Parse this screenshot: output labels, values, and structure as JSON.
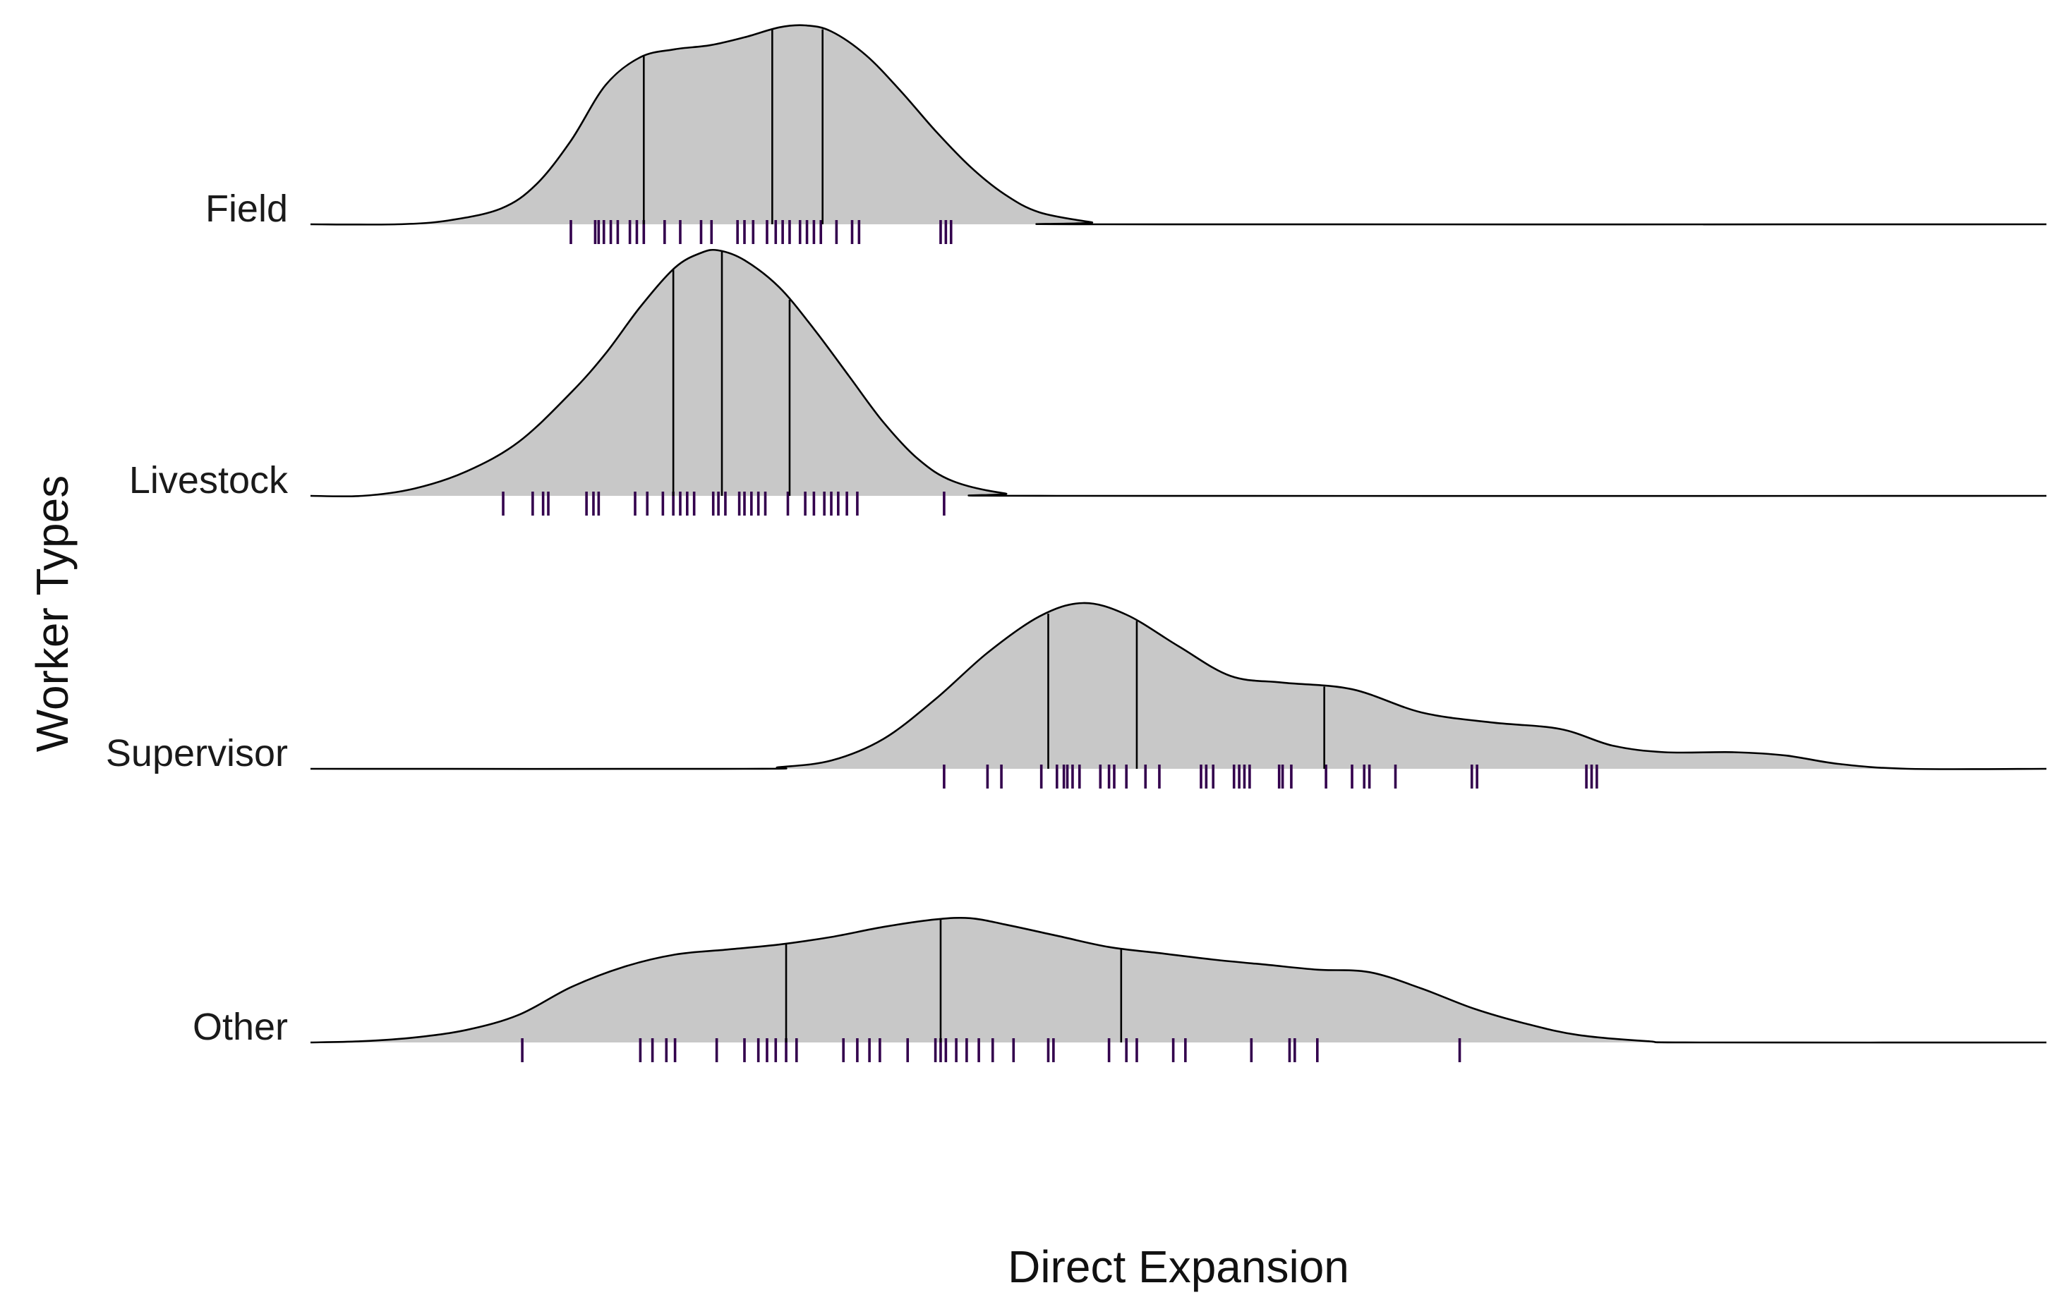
{
  "chart_data": {
    "type": "ridgeline",
    "xlabel": "Direct Expansion",
    "ylabel": "Worker Types",
    "xlim": [
      0,
      100
    ],
    "grid": false,
    "legend": "none",
    "colors": {
      "fill": "#c8c8c8",
      "line": "#000000",
      "rug": "#33004d"
    },
    "series": [
      {
        "name": "Field",
        "density": [
          [
            0,
            0
          ],
          [
            5,
            0
          ],
          [
            8,
            0.02
          ],
          [
            11,
            0.08
          ],
          [
            13,
            0.2
          ],
          [
            15,
            0.42
          ],
          [
            17,
            0.7
          ],
          [
            19,
            0.84
          ],
          [
            21,
            0.88
          ],
          [
            23,
            0.9
          ],
          [
            25,
            0.94
          ],
          [
            27,
            0.99
          ],
          [
            28.5,
            1.0
          ],
          [
            30,
            0.97
          ],
          [
            32,
            0.85
          ],
          [
            34,
            0.67
          ],
          [
            36,
            0.47
          ],
          [
            38,
            0.29
          ],
          [
            40,
            0.15
          ],
          [
            42,
            0.06
          ],
          [
            45,
            0.01
          ],
          [
            46,
            0
          ],
          [
            100,
            0
          ]
        ],
        "quantiles": [
          19.2,
          26.6,
          29.5
        ],
        "rug": [
          15,
          16.4,
          16.6,
          16.9,
          17.3,
          17.7,
          18.4,
          18.8,
          19.2,
          20.4,
          21.3,
          22.5,
          23.1,
          24.6,
          25.0,
          25.5,
          26.3,
          26.8,
          27.2,
          27.6,
          28.2,
          28.6,
          29.0,
          29.4,
          30.3,
          31.2,
          31.6,
          36.3,
          36.6,
          36.9
        ]
      },
      {
        "name": "Livestock",
        "density": [
          [
            0,
            0
          ],
          [
            3,
            0
          ],
          [
            6,
            0.03
          ],
          [
            9,
            0.1
          ],
          [
            12,
            0.22
          ],
          [
            15,
            0.42
          ],
          [
            17,
            0.58
          ],
          [
            19,
            0.77
          ],
          [
            21,
            0.93
          ],
          [
            22.5,
            0.99
          ],
          [
            23.5,
            1.0
          ],
          [
            25,
            0.96
          ],
          [
            27,
            0.85
          ],
          [
            29,
            0.68
          ],
          [
            31,
            0.49
          ],
          [
            33,
            0.3
          ],
          [
            35,
            0.15
          ],
          [
            37,
            0.06
          ],
          [
            40,
            0.01
          ],
          [
            43,
            0
          ],
          [
            100,
            0
          ]
        ],
        "quantiles": [
          20.9,
          23.7,
          27.6
        ],
        "rug": [
          11.1,
          12.8,
          13.4,
          13.7,
          15.9,
          16.3,
          16.6,
          18.7,
          19.4,
          20.3,
          20.9,
          21.3,
          21.7,
          22.1,
          23.2,
          23.5,
          23.9,
          24.7,
          25.0,
          25.4,
          25.8,
          26.2,
          27.5,
          28.5,
          29.0,
          29.6,
          30.0,
          30.4,
          30.9,
          31.5,
          36.5
        ]
      },
      {
        "name": "Supervisor",
        "density": [
          [
            0,
            0
          ],
          [
            25,
            0
          ],
          [
            27,
            0.01
          ],
          [
            30,
            0.05
          ],
          [
            33,
            0.18
          ],
          [
            36,
            0.42
          ],
          [
            39,
            0.7
          ],
          [
            42,
            0.92
          ],
          [
            44.5,
            1.0
          ],
          [
            47,
            0.93
          ],
          [
            50,
            0.74
          ],
          [
            53,
            0.56
          ],
          [
            56,
            0.52
          ],
          [
            60,
            0.48
          ],
          [
            64,
            0.34
          ],
          [
            68,
            0.28
          ],
          [
            72,
            0.24
          ],
          [
            75,
            0.14
          ],
          [
            78,
            0.1
          ],
          [
            82,
            0.1
          ],
          [
            85,
            0.08
          ],
          [
            88,
            0.03
          ],
          [
            92,
            0
          ],
          [
            100,
            0
          ]
        ],
        "quantiles": [
          42.5,
          47.6,
          58.4
        ],
        "rug": [
          36.5,
          39.0,
          39.8,
          42.1,
          43.0,
          43.4,
          43.6,
          43.9,
          44.3,
          45.5,
          46.0,
          46.3,
          47.0,
          48.1,
          48.9,
          51.3,
          51.6,
          52.0,
          53.2,
          53.5,
          53.8,
          54.1,
          55.8,
          56.0,
          56.5,
          58.5,
          60.0,
          60.7,
          61.0,
          62.5,
          66.9,
          67.2,
          73.8,
          74.1,
          73.5
        ]
      },
      {
        "name": "Other",
        "density": [
          [
            0,
            0
          ],
          [
            3,
            0.01
          ],
          [
            6,
            0.04
          ],
          [
            9,
            0.1
          ],
          [
            12,
            0.22
          ],
          [
            15,
            0.44
          ],
          [
            18,
            0.6
          ],
          [
            21,
            0.7
          ],
          [
            24,
            0.74
          ],
          [
            27,
            0.78
          ],
          [
            30,
            0.84
          ],
          [
            33,
            0.92
          ],
          [
            36,
            0.98
          ],
          [
            38,
            0.99
          ],
          [
            40,
            0.94
          ],
          [
            43,
            0.85
          ],
          [
            46,
            0.76
          ],
          [
            49,
            0.71
          ],
          [
            52,
            0.66
          ],
          [
            55,
            0.62
          ],
          [
            58,
            0.58
          ],
          [
            61,
            0.56
          ],
          [
            64,
            0.43
          ],
          [
            67,
            0.27
          ],
          [
            70,
            0.15
          ],
          [
            73,
            0.06
          ],
          [
            77,
            0.01
          ],
          [
            80,
            0
          ],
          [
            100,
            0
          ]
        ],
        "quantiles": [
          27.4,
          36.3,
          46.7
        ],
        "rug": [
          12.2,
          19.0,
          19.7,
          20.5,
          21.0,
          23.4,
          25.0,
          25.8,
          26.3,
          26.8,
          27.4,
          28.0,
          30.7,
          31.5,
          32.2,
          32.8,
          34.4,
          36.0,
          36.3,
          36.6,
          37.2,
          37.8,
          38.5,
          39.3,
          40.5,
          42.5,
          42.8,
          46.0,
          47.0,
          47.6,
          49.7,
          50.4,
          54.2,
          56.4,
          56.7,
          58.0,
          66.2
        ]
      }
    ]
  }
}
